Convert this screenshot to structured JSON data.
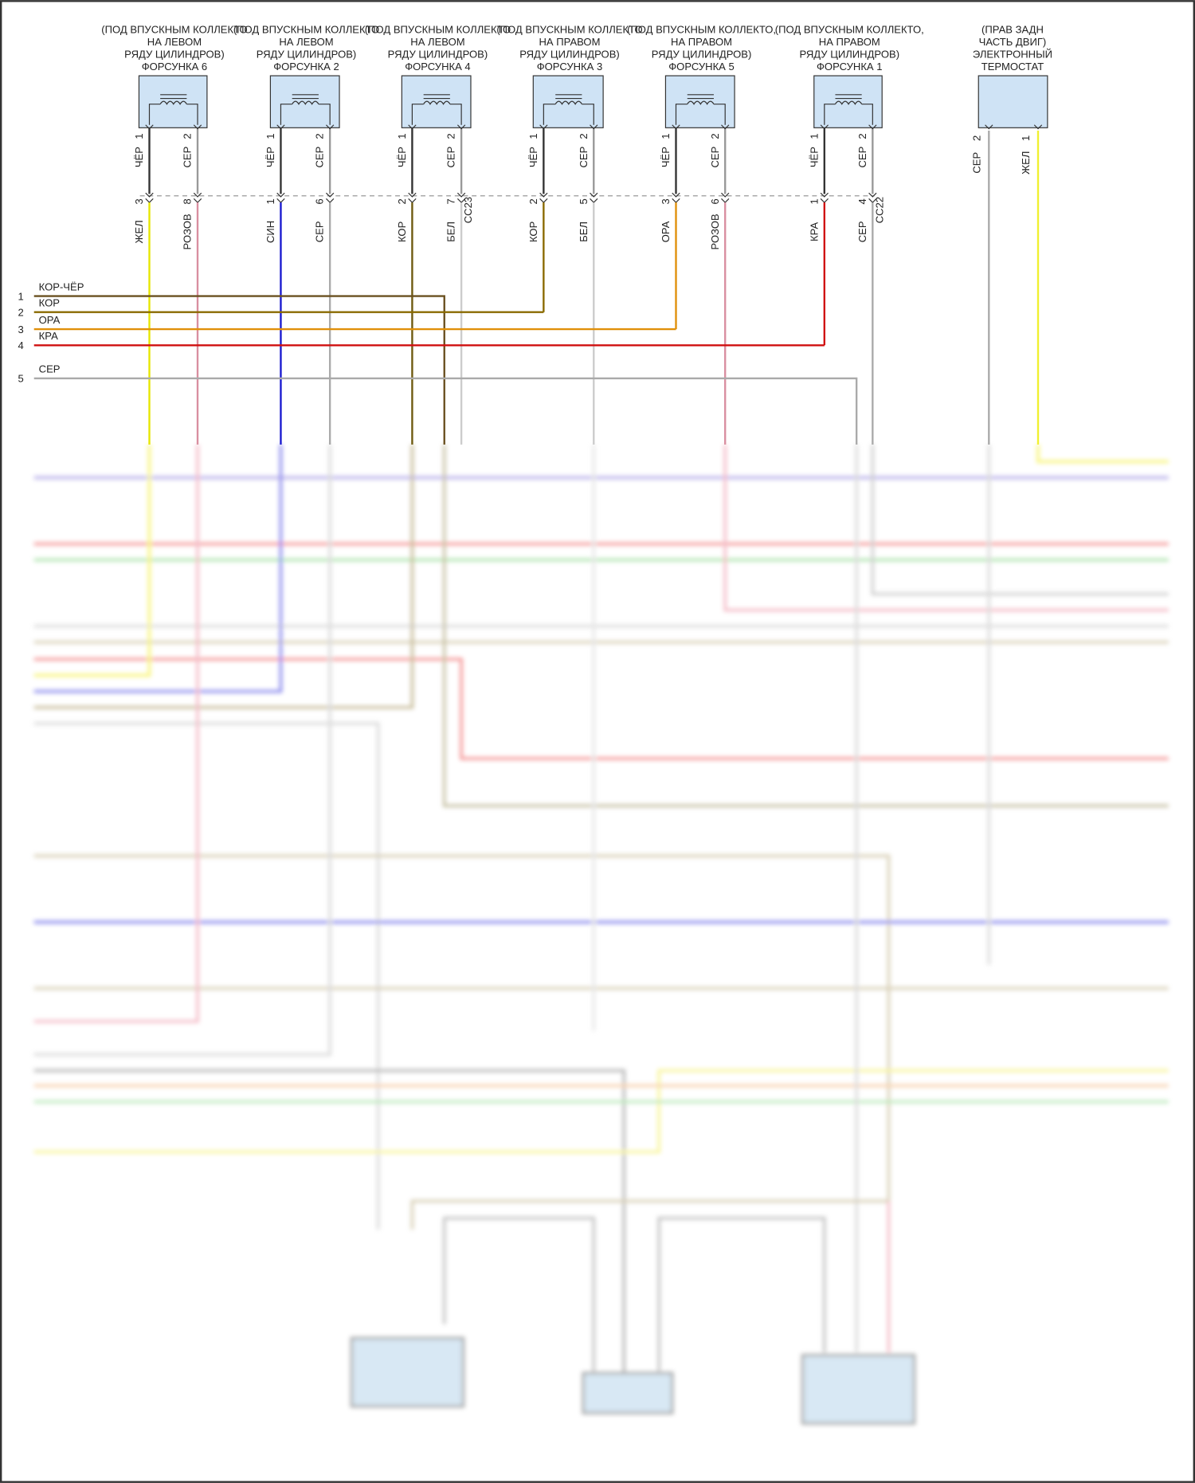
{
  "components": [
    {
      "label": [
        "(ПОД ВПУСКНЫМ КОЛЛЕКТО",
        "НА ЛЕВОМ",
        "РЯДУ ЦИЛИНДРОВ)",
        "ФОРСУНКА 6"
      ],
      "pins": [
        {
          "num": "1",
          "wire": "ЧЁР"
        },
        {
          "num": "2",
          "wire": "СЕР"
        }
      ],
      "conn": [
        {
          "num": "3",
          "wire": "ЖЕЛ"
        },
        {
          "num": "8",
          "wire": "РОЗОВ"
        }
      ]
    },
    {
      "label": [
        "(ПОД ВПУСКНЫМ КОЛЛЕКТО",
        "НА ЛЕВОМ",
        "РЯДУ ЦИЛИНДРОВ)",
        "ФОРСУНКА 2"
      ],
      "pins": [
        {
          "num": "1",
          "wire": "ЧЁР"
        },
        {
          "num": "2",
          "wire": "СЕР"
        }
      ],
      "conn": [
        {
          "num": "1",
          "wire": "СИН"
        },
        {
          "num": "6",
          "wire": "СЕР"
        }
      ]
    },
    {
      "label": [
        "(ПОД ВПУСКНЫМ КОЛЛЕКТО",
        "НА ЛЕВОМ",
        "РЯДУ ЦИЛИНДРОВ)",
        "ФОРСУНКА 4"
      ],
      "pins": [
        {
          "num": "1",
          "wire": "ЧЁР"
        },
        {
          "num": "2",
          "wire": "СЕР"
        }
      ],
      "conn": [
        {
          "num": "2",
          "wire": "КОР"
        },
        {
          "num": "7",
          "wire": "БЕЛ"
        }
      ],
      "connector": "CC23"
    },
    {
      "label": [
        "(ПОД ВПУСКНЫМ КОЛЛЕКТО",
        "НА ПРАВОМ",
        "РЯДУ ЦИЛИНДРОВ)",
        "ФОРСУНКА 3"
      ],
      "pins": [
        {
          "num": "1",
          "wire": "ЧЁР"
        },
        {
          "num": "2",
          "wire": "СЕР"
        }
      ],
      "conn": [
        {
          "num": "2",
          "wire": "КОР"
        },
        {
          "num": "5",
          "wire": "БЕЛ"
        }
      ]
    },
    {
      "label": [
        "(ПОД ВПУСКНЫМ КОЛЛЕКТО,",
        "НА ПРАВОМ",
        "РЯДУ ЦИЛИНДРОВ)",
        "ФОРСУНКА 5"
      ],
      "pins": [
        {
          "num": "1",
          "wire": "ЧЁР"
        },
        {
          "num": "2",
          "wire": "СЕР"
        }
      ],
      "conn": [
        {
          "num": "3",
          "wire": "ОРА"
        },
        {
          "num": "6",
          "wire": "РОЗОВ"
        }
      ]
    },
    {
      "label": [
        "(ПОД ВПУСКНЫМ КОЛЛЕКТО,",
        "НА ПРАВОМ",
        "РЯДУ ЦИЛИНДРОВ)",
        "ФОРСУНКА 1"
      ],
      "pins": [
        {
          "num": "1",
          "wire": "ЧЁР"
        },
        {
          "num": "2",
          "wire": "СЕР"
        }
      ],
      "conn": [
        {
          "num": "1",
          "wire": "КРА"
        },
        {
          "num": "4",
          "wire": "СЕР"
        }
      ],
      "connector": "CC22"
    }
  ],
  "thermostat": {
    "label": [
      "(ПРАВ ЗАДН",
      "ЧАСТЬ ДВИГ)",
      "ЭЛЕКТРОННЫЙ",
      "ТЕРМОСТАТ"
    ],
    "pins": [
      {
        "num": "2",
        "wire": "СЕР"
      },
      {
        "num": "1",
        "wire": "ЖЕЛ"
      }
    ]
  },
  "harness": [
    {
      "num": "1",
      "wire": "КОР-ЧЁР"
    },
    {
      "num": "2",
      "wire": "КОР"
    },
    {
      "num": "3",
      "wire": "ОРА"
    },
    {
      "num": "4",
      "wire": "КРА"
    },
    {
      "num": "5",
      "wire": "СЕР"
    }
  ]
}
